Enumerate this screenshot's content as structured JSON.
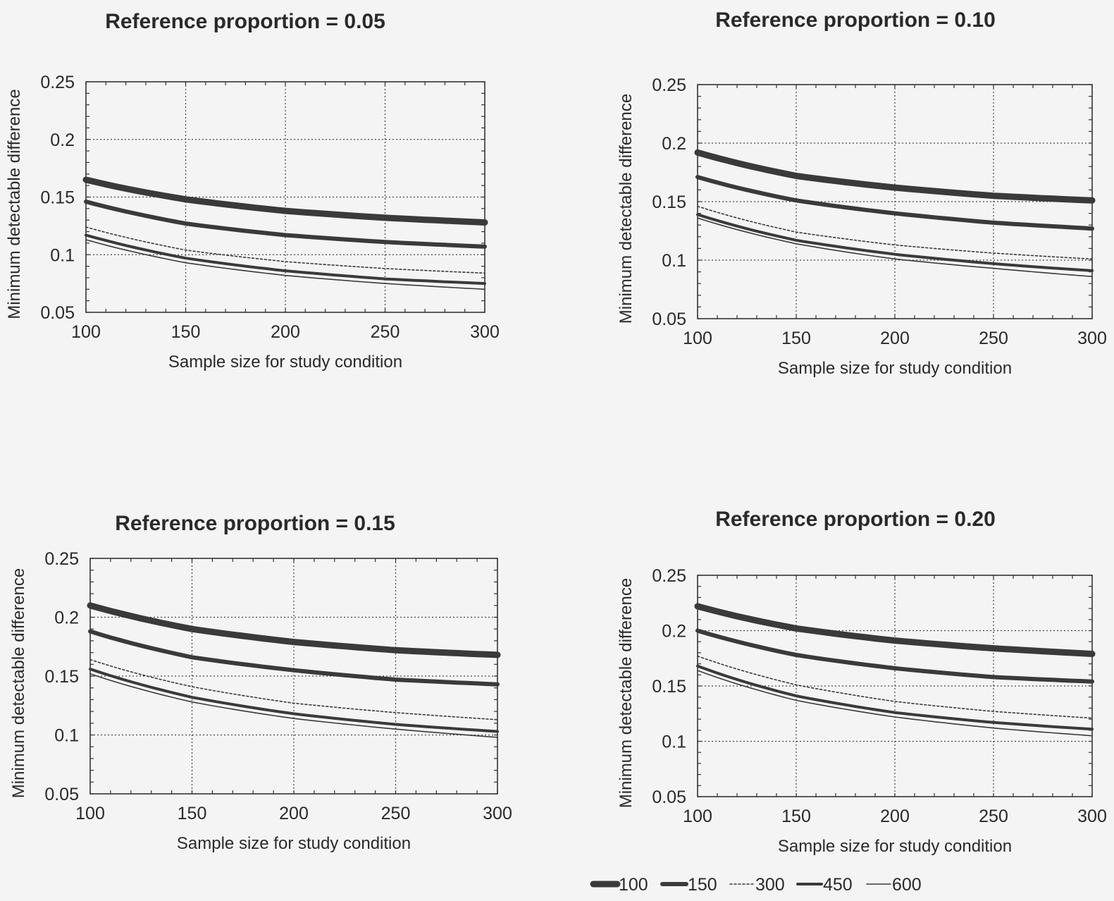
{
  "chart_data": [
    {
      "type": "line",
      "title": "Reference proportion = 0.05",
      "xlabel": "Sample size for study condition",
      "ylabel": "Minimum detectable difference",
      "xlim": [
        100,
        300
      ],
      "ylim": [
        0.05,
        0.25
      ],
      "x_ticks": [
        "100",
        "150",
        "200",
        "250",
        "300"
      ],
      "y_ticks": [
        "0.05",
        "0.1",
        "0.15",
        "0.2",
        "0.25"
      ],
      "grid": true,
      "x": [
        100,
        150,
        200,
        250,
        300
      ],
      "series": [
        {
          "name": "100",
          "values": [
            0.165,
            0.148,
            0.138,
            0.132,
            0.128
          ]
        },
        {
          "name": "150",
          "values": [
            0.146,
            0.127,
            0.117,
            0.111,
            0.107
          ]
        },
        {
          "name": "300",
          "values": [
            0.124,
            0.104,
            0.094,
            0.088,
            0.084
          ]
        },
        {
          "name": "450",
          "values": [
            0.117,
            0.097,
            0.086,
            0.079,
            0.075
          ]
        },
        {
          "name": "600",
          "values": [
            0.113,
            0.093,
            0.082,
            0.075,
            0.07
          ]
        }
      ]
    },
    {
      "type": "line",
      "title": "Reference proportion = 0.10",
      "xlabel": "Sample size for study condition",
      "ylabel": "Minimum detectable difference",
      "xlim": [
        100,
        300
      ],
      "ylim": [
        0.05,
        0.25
      ],
      "x_ticks": [
        "100",
        "150",
        "200",
        "250",
        "300"
      ],
      "y_ticks": [
        "0.05",
        "0.1",
        "0.15",
        "0.2",
        "0.25"
      ],
      "grid": true,
      "x": [
        100,
        150,
        200,
        250,
        300
      ],
      "series": [
        {
          "name": "100",
          "values": [
            0.192,
            0.172,
            0.162,
            0.155,
            0.151
          ]
        },
        {
          "name": "150",
          "values": [
            0.171,
            0.151,
            0.14,
            0.132,
            0.127
          ]
        },
        {
          "name": "300",
          "values": [
            0.146,
            0.124,
            0.113,
            0.106,
            0.101
          ]
        },
        {
          "name": "450",
          "values": [
            0.139,
            0.117,
            0.105,
            0.097,
            0.091
          ]
        },
        {
          "name": "600",
          "values": [
            0.136,
            0.114,
            0.101,
            0.093,
            0.086
          ]
        }
      ]
    },
    {
      "type": "line",
      "title": "Reference proportion = 0.15",
      "xlabel": "Sample size for study condition",
      "ylabel": "Minimum detectable difference",
      "xlim": [
        100,
        300
      ],
      "ylim": [
        0.05,
        0.25
      ],
      "x_ticks": [
        "100",
        "150",
        "200",
        "250",
        "300"
      ],
      "y_ticks": [
        "0.05",
        "0.1",
        "0.15",
        "0.2",
        "0.25"
      ],
      "grid": true,
      "x": [
        100,
        150,
        200,
        250,
        300
      ],
      "series": [
        {
          "name": "100",
          "values": [
            0.21,
            0.19,
            0.179,
            0.172,
            0.168
          ]
        },
        {
          "name": "150",
          "values": [
            0.188,
            0.166,
            0.155,
            0.147,
            0.143
          ]
        },
        {
          "name": "300",
          "values": [
            0.164,
            0.141,
            0.127,
            0.119,
            0.113
          ]
        },
        {
          "name": "450",
          "values": [
            0.156,
            0.132,
            0.118,
            0.109,
            0.103
          ]
        },
        {
          "name": "600",
          "values": [
            0.152,
            0.128,
            0.114,
            0.105,
            0.098
          ]
        }
      ]
    },
    {
      "type": "line",
      "title": "Reference proportion = 0.20",
      "xlabel": "Sample size for study condition",
      "ylabel": "Minimum detectable difference",
      "xlim": [
        100,
        300
      ],
      "ylim": [
        0.05,
        0.25
      ],
      "x_ticks": [
        "100",
        "150",
        "200",
        "250",
        "300"
      ],
      "y_ticks": [
        "0.05",
        "0.1",
        "0.15",
        "0.2",
        "0.25"
      ],
      "grid": true,
      "x": [
        100,
        150,
        200,
        250,
        300
      ],
      "series": [
        {
          "name": "100",
          "values": [
            0.222,
            0.202,
            0.191,
            0.184,
            0.179
          ]
        },
        {
          "name": "150",
          "values": [
            0.2,
            0.178,
            0.166,
            0.158,
            0.154
          ]
        },
        {
          "name": "300",
          "values": [
            0.177,
            0.151,
            0.136,
            0.127,
            0.121
          ]
        },
        {
          "name": "450",
          "values": [
            0.168,
            0.141,
            0.126,
            0.117,
            0.111
          ]
        },
        {
          "name": "600",
          "values": [
            0.164,
            0.137,
            0.122,
            0.112,
            0.105
          ]
        }
      ]
    }
  ],
  "legend": {
    "placement": "bottom-right",
    "entries": [
      {
        "label": "100",
        "style": "thickest solid"
      },
      {
        "label": "150",
        "style": "thick solid"
      },
      {
        "label": "300",
        "style": "thin dotted"
      },
      {
        "label": "450",
        "style": "medium solid"
      },
      {
        "label": "600",
        "style": "thin solid"
      }
    ]
  },
  "colors": {
    "line": "#3a3a3a",
    "grid": "#444444",
    "background": "#f4f4f4"
  }
}
